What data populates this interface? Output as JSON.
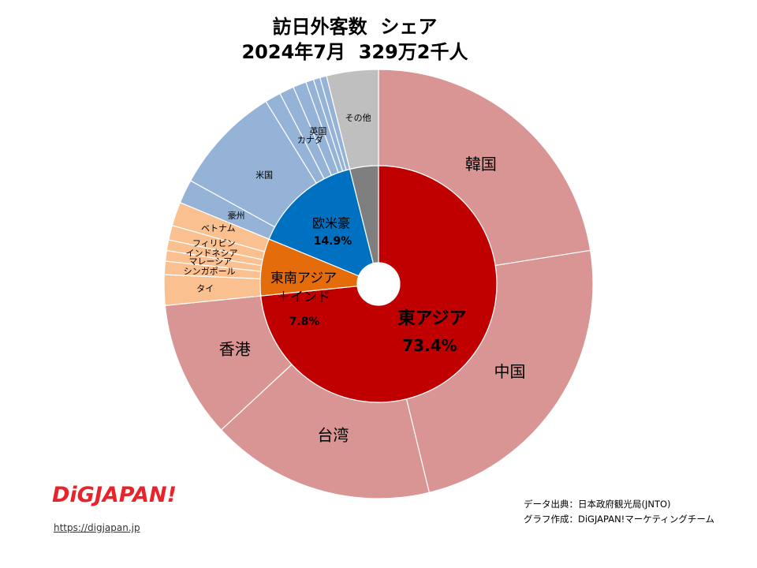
{
  "title": {
    "line1": "訪日外客数  シェア",
    "line2": "2024年7月  329万2千人"
  },
  "chart_data": {
    "type": "pie",
    "subtype": "nested donut (sunburst)",
    "inner_ring": [
      {
        "name": "東アジア",
        "label": "73.4%",
        "value": 73.4,
        "color": "#c00000"
      },
      {
        "name": "東南アジア\n＋インド",
        "label": "7.8%",
        "value": 7.8,
        "color": "#e46c0a"
      },
      {
        "name": "欧米豪",
        "label": "14.9%",
        "value": 14.9,
        "color": "#0070c0"
      },
      {
        "name": "",
        "label": "",
        "value": 3.9,
        "color": "#7f7f7f"
      }
    ],
    "outer_ring": [
      {
        "name": "韓国",
        "value": 22.5,
        "group": "東アジア",
        "color": "#d99594"
      },
      {
        "name": "中国",
        "value": 23.7,
        "group": "東アジア",
        "color": "#d99594"
      },
      {
        "name": "台湾",
        "value": 16.9,
        "group": "東アジア",
        "color": "#d99594"
      },
      {
        "name": "香港",
        "value": 10.3,
        "group": "東アジア",
        "color": "#d99594"
      },
      {
        "name": "タイ",
        "value": 2.3,
        "group": "東南アジア＋インド",
        "color": "#fac090"
      },
      {
        "name": "シンガポール",
        "value": 1.0,
        "group": "東南アジア＋インド",
        "color": "#fac090"
      },
      {
        "name": "マレーシア",
        "value": 0.8,
        "group": "東南アジア＋インド",
        "color": "#fac090"
      },
      {
        "name": "インドネシア",
        "value": 0.8,
        "group": "東南アジア＋インド",
        "color": "#fac090"
      },
      {
        "name": "フィリピン",
        "value": 1.1,
        "group": "東南アジア＋インド",
        "color": "#fac090"
      },
      {
        "name": "ベトナム",
        "value": 1.8,
        "group": "東南アジア＋インド",
        "color": "#fac090"
      },
      {
        "name": "",
        "value": 0.0,
        "group": "東南アジア＋インド",
        "color": "#fac090"
      },
      {
        "name": "豪州",
        "value": 1.8,
        "group": "欧米豪",
        "color": "#95b3d7"
      },
      {
        "name": "米国",
        "value": 8.2,
        "group": "欧米豪",
        "color": "#95b3d7"
      },
      {
        "name": "",
        "value": 1.2,
        "group": "欧米豪",
        "color": "#95b3d7"
      },
      {
        "name": "カナダ",
        "value": 1.1,
        "group": "欧米豪",
        "color": "#95b3d7"
      },
      {
        "name": "英国",
        "value": 1.0,
        "group": "欧米豪",
        "color": "#95b3d7"
      },
      {
        "name": "",
        "value": 0.6,
        "group": "欧米豪",
        "color": "#95b3d7"
      },
      {
        "name": "",
        "value": 0.5,
        "group": "欧米豪",
        "color": "#95b3d7"
      },
      {
        "name": "",
        "value": 0.5,
        "group": "欧米豪",
        "color": "#95b3d7"
      },
      {
        "name": "",
        "value": 0.0,
        "group": "欧米豪",
        "color": "#95b3d7"
      },
      {
        "name": "その他",
        "value": 3.9,
        "group": "",
        "color": "#bfbfbf"
      }
    ],
    "start_angle_deg": 0,
    "direction": "clockwise",
    "legend": "none"
  },
  "logo": {
    "text": "DiGJAPAN!",
    "url_text": "https://digjapan.jp"
  },
  "credits": {
    "source": "データ出典：日本政府観光局(JNTO)",
    "author": "グラフ作成：DiGJAPAN!マーケティングチーム"
  },
  "colors": {
    "accent": "#e8242b"
  }
}
